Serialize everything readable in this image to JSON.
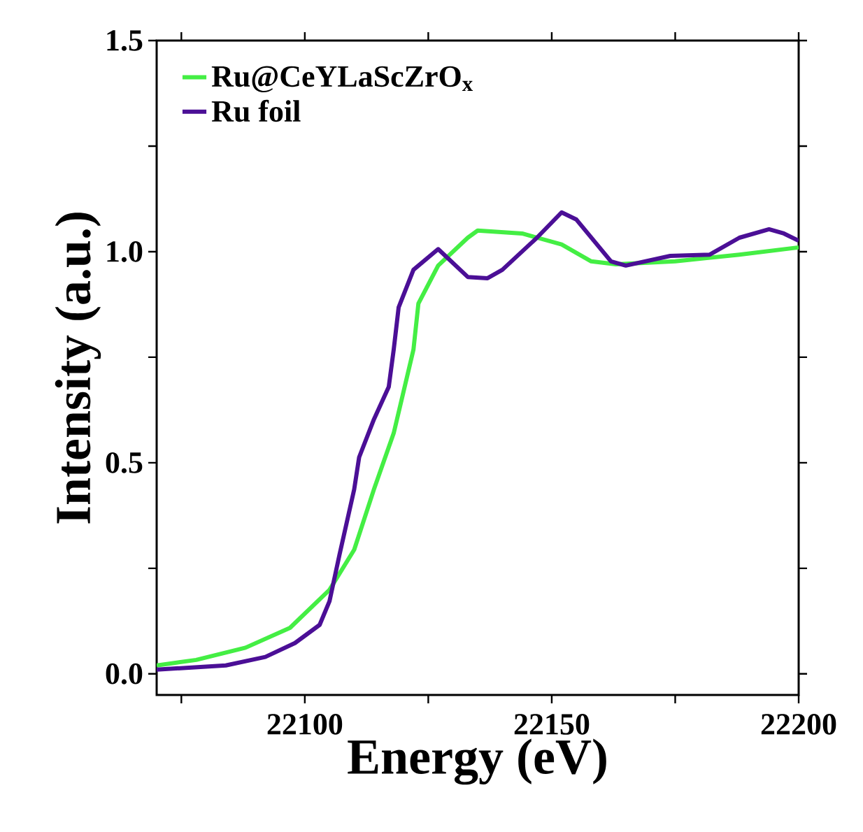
{
  "chart_data": {
    "type": "line",
    "xlabel": "Energy (eV)",
    "ylabel": "Intensity (a.u.)",
    "xlim": [
      22070,
      22200
    ],
    "ylim": [
      -0.05,
      1.5
    ],
    "xticks": [
      {
        "value": 22075,
        "label": null
      },
      22100,
      {
        "value": 22125,
        "label": null
      },
      22150,
      {
        "value": 22175,
        "label": null
      },
      22200
    ],
    "yticks": [
      {
        "value": 0,
        "label": "0.0"
      },
      {
        "value": 0.25,
        "label": null
      },
      0.5,
      {
        "value": 0.75,
        "label": null
      },
      {
        "value": 1,
        "label": "1.0"
      },
      {
        "value": 1.25,
        "label": null
      },
      1.5
    ],
    "legend": "top left",
    "grid": false,
    "line_style": "solid",
    "series": [
      {
        "name": "Ru@CeYLaScZrO$_{x}$",
        "color": "#44ee44",
        "x": [
          22070,
          22078,
          22088,
          22097,
          22105,
          22110,
          22114,
          22118,
          22122,
          22123,
          22127,
          22133,
          22135,
          22144,
          22152,
          22158,
          22163,
          22175,
          22188,
          22200
        ],
        "values": [
          0.02,
          0.033,
          0.062,
          0.109,
          0.199,
          0.294,
          0.437,
          0.57,
          0.768,
          0.877,
          0.967,
          1.033,
          1.05,
          1.043,
          1.017,
          0.977,
          0.97,
          0.977,
          0.993,
          1.01
        ]
      },
      {
        "name": "Ru foil",
        "color": "#4b0f96",
        "x": [
          22070,
          22084,
          22092,
          22098,
          22103,
          22105,
          22107,
          22110,
          22111,
          22114,
          22117,
          22118,
          22119,
          22122,
          22127,
          22133,
          22137,
          22140,
          22147,
          22152,
          22155,
          22162,
          22165,
          22174,
          22182,
          22188,
          22194,
          22197,
          22200
        ],
        "values": [
          0.01,
          0.02,
          0.04,
          0.073,
          0.116,
          0.172,
          0.281,
          0.437,
          0.513,
          0.603,
          0.68,
          0.768,
          0.868,
          0.957,
          1.006,
          0.94,
          0.937,
          0.957,
          1.033,
          1.093,
          1.076,
          0.977,
          0.967,
          0.99,
          0.993,
          1.033,
          1.053,
          1.043,
          1.026
        ]
      }
    ]
  }
}
